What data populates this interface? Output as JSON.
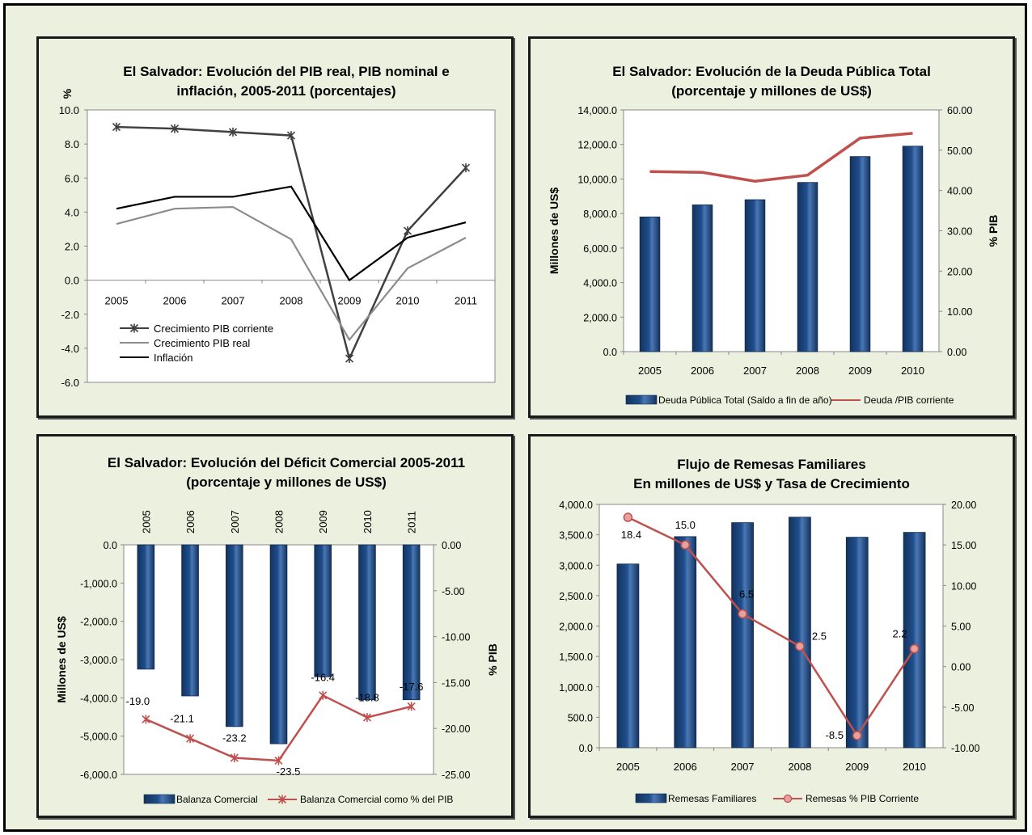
{
  "chart_data": [
    {
      "type": "line",
      "title": "El Salvador: Evolución del PIB real, PIB nominal e inflación, 2005-2011 (porcentajes)",
      "title_lines": [
        "El Salvador: Evolución del PIB real, PIB nominal e",
        "inflación, 2005-2011 (porcentajes)"
      ],
      "ylabel": "%",
      "ylim": [
        -6,
        10
      ],
      "yticks": [
        "10.0",
        "8.0",
        "6.0",
        "4.0",
        "2.0",
        "0.0",
        "-2.0",
        "-4.0",
        "-6.0"
      ],
      "categories": [
        "2005",
        "2006",
        "2007",
        "2008",
        "2009",
        "2010",
        "2011"
      ],
      "legend_position": "bottom-left",
      "series": [
        {
          "name": "Crecimiento PIB corriente",
          "values": [
            9.0,
            8.9,
            8.7,
            8.5,
            -4.6,
            2.9,
            6.6
          ],
          "color": "#404040"
        },
        {
          "name": "Crecimiento PIB real",
          "values": [
            3.3,
            4.2,
            4.3,
            2.4,
            -3.5,
            0.7,
            2.5
          ],
          "color": "#8c8c8c"
        },
        {
          "name": "Inflación",
          "values": [
            4.2,
            4.9,
            4.9,
            5.5,
            0.0,
            2.5,
            3.4
          ],
          "color": "#000000"
        }
      ]
    },
    {
      "type": "bar+line",
      "title": "El Salvador: Evolución de la Deuda Pública Total (porcentaje y millones de US$)",
      "title_lines": [
        "El Salvador: Evolución de la Deuda Pública Total",
        "(porcentaje y millones de US$)"
      ],
      "ylabel": "Millones de US$",
      "y2label": "% PIB",
      "ylim": [
        0,
        14000
      ],
      "y2lim": [
        0,
        60
      ],
      "yticks": [
        "14,000.0",
        "12,000.0",
        "10,000.0",
        "8,000.0",
        "6,000.0",
        "4,000.0",
        "2,000.0",
        "0.0"
      ],
      "y2ticks": [
        "60.00",
        "50.00",
        "40.00",
        "30.00",
        "20.00",
        "10.00",
        "0.00"
      ],
      "categories": [
        "2005",
        "2006",
        "2007",
        "2008",
        "2009",
        "2010"
      ],
      "series": [
        {
          "name": "Deuda Pública Total (Saldo a fin de año)",
          "kind": "bar",
          "values": [
            7800,
            8500,
            8800,
            9800,
            11300,
            11900
          ],
          "color": "#1f4e8c"
        },
        {
          "name": "Deuda /PIB corriente",
          "kind": "line",
          "axis": "right",
          "values": [
            44.7,
            44.5,
            42.3,
            43.8,
            53.0,
            54.2
          ],
          "color": "#c0504d"
        }
      ]
    },
    {
      "type": "bar+line",
      "title": "El Salvador: Evolución del Déficit Comercial 2005-2011 (porcentaje y millones de US$)",
      "title_lines": [
        "El Salvador: Evolución del Déficit Comercial 2005-2011",
        "(porcentaje y millones de US$)"
      ],
      "ylabel": "Millones de US$",
      "y2label": "% PIB",
      "ylim": [
        -6000,
        0
      ],
      "y2lim": [
        -25,
        0
      ],
      "yticks": [
        "0.0",
        "-1,000.0",
        "-2,000.0",
        "-3,000.0",
        "-4,000.0",
        "-5,000.0",
        "-6,000.0"
      ],
      "y2ticks": [
        "0.00",
        "-5.00",
        "-10.00",
        "-15.00",
        "-20.00",
        "-25.00"
      ],
      "categories": [
        "2005",
        "2006",
        "2007",
        "2008",
        "2009",
        "2010",
        "2011"
      ],
      "series": [
        {
          "name": "Balanza Comercial",
          "kind": "bar",
          "values": [
            -3250,
            -3950,
            -4750,
            -5200,
            -3450,
            -4050,
            -4050
          ],
          "color": "#1f4e8c"
        },
        {
          "name": "Balanza Comercial como % del PIB",
          "kind": "line",
          "axis": "right",
          "values": [
            -19.0,
            -21.1,
            -23.2,
            -23.5,
            -16.4,
            -18.8,
            -17.6
          ],
          "labels": [
            "-19.0",
            "-21.1",
            "-23.2",
            "-23.5",
            "-16.4",
            "-18.8",
            "-17.6"
          ],
          "color": "#c0504d"
        }
      ]
    },
    {
      "type": "bar+line",
      "title": "Flujo de Remesas Familiares En millones de US$ y Tasa de Crecimiento",
      "title_lines": [
        "Flujo de Remesas Familiares",
        "En  millones de US$ y Tasa de Crecimiento"
      ],
      "ylim": [
        0,
        4000
      ],
      "y2lim": [
        -10,
        20
      ],
      "yticks": [
        "4,000.0",
        "3,500.0",
        "3,000.0",
        "2,500.0",
        "2,000.0",
        "1,500.0",
        "1,000.0",
        "500.0",
        "0.0"
      ],
      "y2ticks": [
        "20.00",
        "15.00",
        "10.00",
        "5.00",
        "0.00",
        "-5.00",
        "-10.00"
      ],
      "categories": [
        "2005",
        "2006",
        "2007",
        "2008",
        "2009",
        "2010"
      ],
      "series": [
        {
          "name": "Remesas Familiares",
          "kind": "bar",
          "values": [
            3020,
            3470,
            3700,
            3790,
            3460,
            3540
          ],
          "color": "#1f4e8c"
        },
        {
          "name": "Remesas % PIB Corriente",
          "kind": "line",
          "axis": "right",
          "values": [
            18.4,
            15.0,
            6.5,
            2.5,
            -8.5,
            2.2
          ],
          "labels": [
            "18.4",
            "15.0",
            "6.5",
            "2.5",
            "-8.5",
            "2.2"
          ],
          "color": "#c0504d"
        }
      ]
    }
  ]
}
